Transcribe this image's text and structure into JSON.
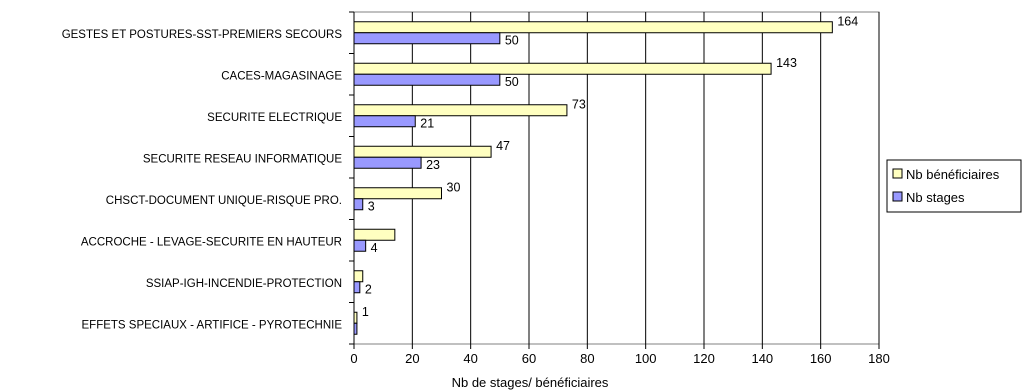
{
  "chart_data": {
    "type": "bar",
    "orientation": "horizontal",
    "categories": [
      "GESTES ET POSTURES-SST-PREMIERS SECOURS",
      "CACES-MAGASINAGE",
      "SECURITE ELECTRIQUE",
      "SECURITE RESEAU INFORMATIQUE",
      "CHSCT-DOCUMENT UNIQUE-RISQUE PRO.",
      "ACCROCHE - LEVAGE-SECURITE EN HAUTEUR",
      "SSIAP-IGH-INCENDIE-PROTECTION",
      "EFFETS SPECIAUX - ARTIFICE - PYROTECHNIE"
    ],
    "series": [
      {
        "name": "Nb bénéficiaires",
        "color": "#ffffc0",
        "values": [
          164,
          143,
          73,
          47,
          30,
          14,
          3,
          1
        ]
      },
      {
        "name": "Nb stages",
        "color": "#9999ff",
        "values": [
          50,
          50,
          21,
          23,
          3,
          4,
          2,
          1
        ]
      }
    ],
    "data_labels": {
      "bar1": [
        "164",
        "143",
        "73",
        "47",
        "30",
        "",
        "",
        "1"
      ],
      "bar2": [
        "50",
        "50",
        "21",
        "23",
        "3",
        "4",
        "2",
        ""
      ]
    },
    "xlabel": "Nb de stages/ bénéficiaires",
    "xlim": [
      0,
      180
    ],
    "xticks": [
      0,
      20,
      40,
      60,
      80,
      100,
      120,
      140,
      160,
      180
    ],
    "grid": true,
    "legend": "right"
  }
}
